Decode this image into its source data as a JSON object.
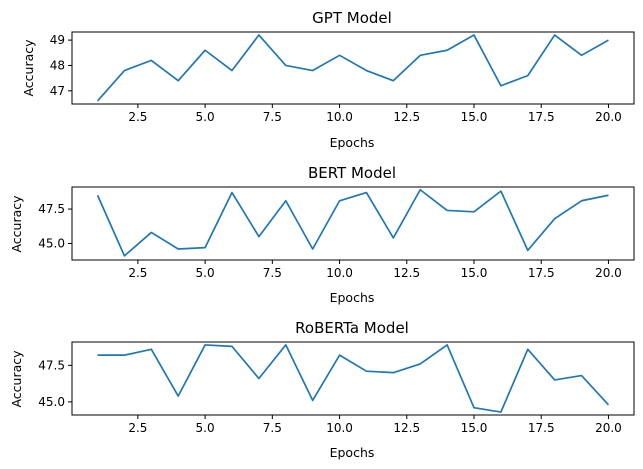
{
  "chart_data": [
    {
      "type": "line",
      "title": "GPT Model",
      "xlabel": "Epochs",
      "ylabel": "Accuracy",
      "xlim": [
        0.05,
        20.95
      ],
      "ylim": [
        46.48,
        49.32
      ],
      "xticks": [
        2.5,
        5.0,
        7.5,
        10.0,
        12.5,
        15.0,
        17.5,
        20.0
      ],
      "xtick_labels": [
        "2.5",
        "5.0",
        "7.5",
        "10.0",
        "12.5",
        "15.0",
        "17.5",
        "20.0"
      ],
      "yticks": [
        47,
        48,
        49
      ],
      "ytick_labels": [
        "47",
        "48",
        "49"
      ],
      "grid": false,
      "color": "#1f77b4",
      "x": [
        1,
        2,
        3,
        4,
        5,
        6,
        7,
        8,
        9,
        10,
        11,
        12,
        13,
        14,
        15,
        16,
        17,
        18,
        19,
        20
      ],
      "y": [
        46.6,
        47.8,
        48.2,
        47.4,
        48.6,
        47.8,
        49.2,
        48.0,
        47.8,
        48.4,
        47.8,
        47.4,
        48.4,
        48.6,
        49.2,
        47.2,
        47.6,
        49.2,
        48.4,
        49.0
      ]
    },
    {
      "type": "line",
      "title": "BERT Model",
      "xlabel": "Epochs",
      "ylabel": "Accuracy",
      "xlim": [
        0.05,
        20.95
      ],
      "ylim": [
        43.8,
        49.1
      ],
      "xticks": [
        2.5,
        5.0,
        7.5,
        10.0,
        12.5,
        15.0,
        17.5,
        20.0
      ],
      "xtick_labels": [
        "2.5",
        "5.0",
        "7.5",
        "10.0",
        "12.5",
        "15.0",
        "17.5",
        "20.0"
      ],
      "yticks": [
        45.0,
        47.5
      ],
      "ytick_labels": [
        "45.0",
        "47.5"
      ],
      "grid": false,
      "color": "#1f77b4",
      "x": [
        1,
        2,
        3,
        4,
        5,
        6,
        7,
        8,
        9,
        10,
        11,
        12,
        13,
        14,
        15,
        16,
        17,
        18,
        19,
        20
      ],
      "y": [
        48.5,
        44.1,
        45.8,
        44.6,
        44.7,
        48.7,
        45.5,
        48.1,
        44.6,
        48.1,
        48.7,
        45.4,
        48.9,
        47.4,
        47.3,
        48.8,
        44.5,
        46.8,
        48.1,
        48.5
      ]
    },
    {
      "type": "line",
      "title": "RoBERTa Model",
      "xlabel": "Epochs",
      "ylabel": "Accuracy",
      "xlim": [
        0.05,
        20.95
      ],
      "ylim": [
        44.1,
        49.1
      ],
      "xticks": [
        2.5,
        5.0,
        7.5,
        10.0,
        12.5,
        15.0,
        17.5,
        20.0
      ],
      "xtick_labels": [
        "2.5",
        "5.0",
        "7.5",
        "10.0",
        "12.5",
        "15.0",
        "17.5",
        "20.0"
      ],
      "yticks": [
        45.0,
        47.5
      ],
      "ytick_labels": [
        "45.0",
        "47.5"
      ],
      "grid": false,
      "color": "#1f77b4",
      "x": [
        1,
        2,
        3,
        4,
        5,
        6,
        7,
        8,
        9,
        10,
        11,
        12,
        13,
        14,
        15,
        16,
        17,
        18,
        19,
        20
      ],
      "y": [
        48.2,
        48.2,
        48.6,
        45.4,
        48.9,
        48.8,
        46.6,
        48.9,
        45.1,
        48.2,
        47.1,
        47.0,
        47.6,
        48.9,
        44.6,
        44.3,
        48.6,
        46.5,
        46.8,
        44.8
      ]
    }
  ]
}
